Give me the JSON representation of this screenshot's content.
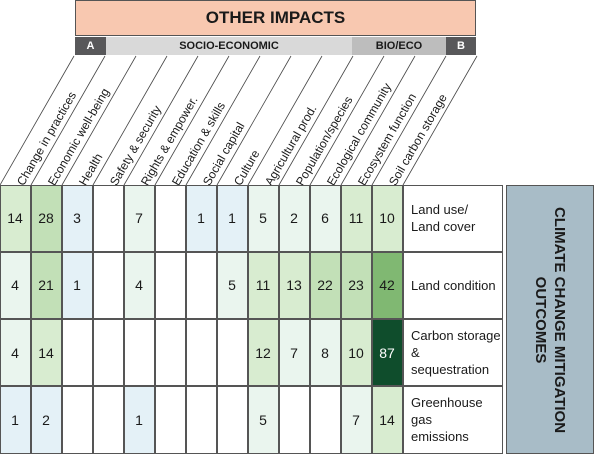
{
  "header": {
    "title": "OTHER IMPACTS",
    "categories": [
      {
        "label": "A",
        "style": "dark"
      },
      {
        "label": "SOCIO-ECONOMIC",
        "style": "light"
      },
      {
        "label": "BIO/ECO",
        "style": "mid"
      },
      {
        "label": "B",
        "style": "dark"
      }
    ]
  },
  "side_label": "CLIMATE CHANGE MITIGATION OUTCOMES",
  "chart_data": {
    "type": "heatmap",
    "title": "OTHER IMPACTS",
    "columns": [
      "Change in practices",
      "Economic well-being",
      "Health",
      "Safety & security",
      "Rights & empower.",
      "Education & skills",
      "Social capital",
      "Culture",
      "Agricultural prod.",
      "Population/species",
      "Ecological community",
      "Ecosystem function",
      "Soil carbon storage"
    ],
    "rows": [
      "Land use/ Land cover",
      "Land condition",
      "Carbon storage & sequestration",
      "Greenhouse gas emissions"
    ],
    "row_lines": [
      [
        "Land use/",
        "Land cover"
      ],
      [
        "Land condition"
      ],
      [
        "Carbon storage &",
        "sequestration"
      ],
      [
        "Greenhouse gas",
        "emissions"
      ]
    ],
    "values": [
      [
        14,
        28,
        3,
        null,
        7,
        null,
        1,
        1,
        5,
        2,
        6,
        11,
        10
      ],
      [
        4,
        21,
        1,
        null,
        4,
        null,
        null,
        5,
        11,
        13,
        22,
        23,
        42
      ],
      [
        4,
        14,
        null,
        null,
        null,
        null,
        null,
        null,
        12,
        7,
        8,
        10,
        87
      ],
      [
        1,
        2,
        null,
        null,
        1,
        null,
        null,
        null,
        5,
        null,
        null,
        7,
        14
      ]
    ],
    "column_groups": [
      {
        "label": "A",
        "columns": [
          0
        ]
      },
      {
        "label": "SOCIO-ECONOMIC",
        "columns": [
          1,
          2,
          3,
          4,
          5,
          6,
          7,
          8
        ]
      },
      {
        "label": "BIO/ECO",
        "columns": [
          9,
          10,
          11
        ]
      },
      {
        "label": "B",
        "columns": [
          12
        ]
      }
    ],
    "color_scale": {
      "low": "#eef7e8",
      "mid": "#8cc47a",
      "high": "#0f4d2c",
      "blue_tint": "#e4f1f7"
    }
  }
}
